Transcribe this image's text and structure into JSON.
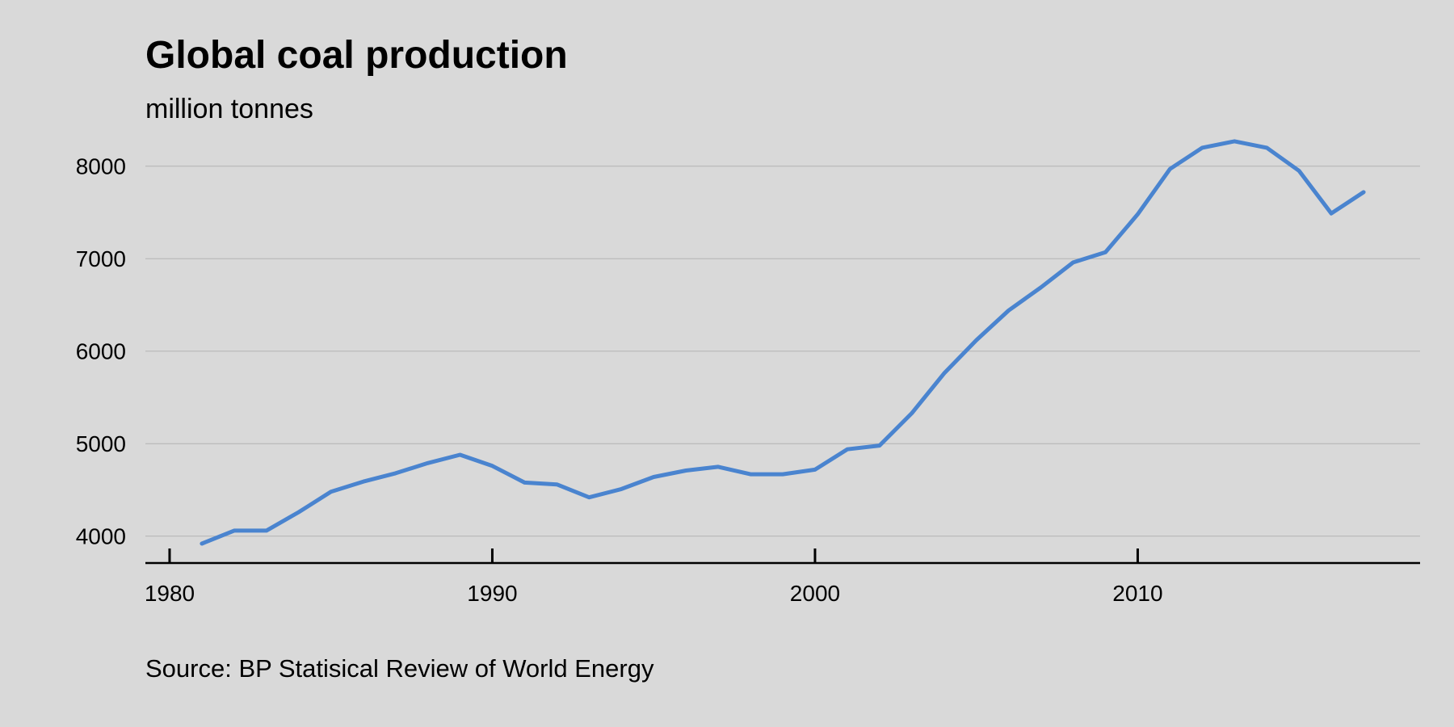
{
  "title": "Global coal production",
  "subtitle": "million tonnes",
  "source": "Source: BP Statisical Review of World Energy",
  "colors": {
    "background": "#d9d9d9",
    "line": "#4a84cf",
    "grid": "#b3b3b3",
    "axis": "#000000"
  },
  "chart_data": {
    "type": "line",
    "title": "Global coal production",
    "subtitle": "million tonnes",
    "xlabel": "",
    "ylabel": "",
    "xlim": [
      1979.25,
      2018.75
    ],
    "ylim": [
      3710,
      8400
    ],
    "x_ticks": [
      1980,
      1990,
      2000,
      2010
    ],
    "y_ticks": [
      4000,
      5000,
      6000,
      7000,
      8000
    ],
    "grid": "horizontal",
    "legend": "none",
    "x": [
      1981,
      1982,
      1983,
      1984,
      1985,
      1986,
      1987,
      1988,
      1989,
      1990,
      1991,
      1992,
      1993,
      1994,
      1995,
      1996,
      1997,
      1998,
      1999,
      2000,
      2001,
      2002,
      2003,
      2004,
      2005,
      2006,
      2007,
      2008,
      2009,
      2010,
      2011,
      2012,
      2013,
      2014,
      2015,
      2016,
      2017
    ],
    "series": [
      {
        "values": [
          3920,
          4060,
          4060,
          4260,
          4480,
          4590,
          4680,
          4790,
          4880,
          4760,
          4580,
          4560,
          4420,
          4510,
          4640,
          4710,
          4750,
          4670,
          4670,
          4720,
          4940,
          4980,
          5330,
          5760,
          6120,
          6440,
          6690,
          6960,
          7070,
          7480,
          7970,
          8200,
          8270,
          8200,
          7950,
          7490,
          7720
        ]
      }
    ]
  }
}
